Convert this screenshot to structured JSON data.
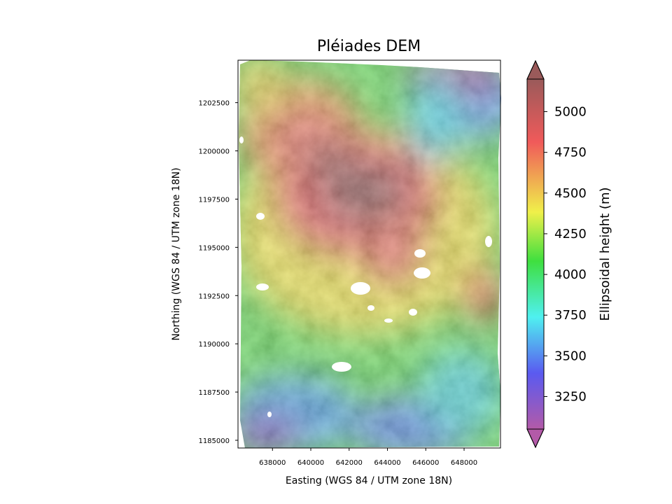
{
  "title": "Pléiades DEM",
  "map": {
    "xlabel": "Easting (WGS 84 / UTM zone 18N)",
    "ylabel": "Northing (WGS 84 / UTM zone 18N)",
    "xlim": [
      636200,
      649900
    ],
    "ylim": [
      1184600,
      1204700
    ],
    "xticks": [
      638000,
      640000,
      642000,
      644000,
      646000,
      648000
    ],
    "yticks": [
      1185000,
      1187500,
      1190000,
      1192500,
      1195000,
      1197500,
      1200000,
      1202500
    ],
    "xtick_labels": [
      "638000",
      "640000",
      "642000",
      "644000",
      "646000",
      "648000"
    ],
    "ytick_labels": [
      "1185000",
      "1187500",
      "1190000",
      "1192500",
      "1195000",
      "1197500",
      "1200000",
      "1202500"
    ]
  },
  "colorbar": {
    "label": "Ellipsoidal height (m)",
    "range": [
      3050,
      5200
    ],
    "extend": "both",
    "ticks": [
      3250,
      3500,
      3750,
      4000,
      4250,
      4500,
      4750,
      5000
    ],
    "tick_labels": [
      "3250",
      "3500",
      "3750",
      "4000",
      "4250",
      "4500",
      "4750",
      "5000"
    ],
    "colormap": "rainbow (magenta-blue-cyan-green-yellow-red-brown), semi-transparent over hillshade",
    "colors": [
      "#b35aa8",
      "#5a5af0",
      "#4ff0f0",
      "#3fdf3f",
      "#f0f04a",
      "#f05a5a",
      "#9a5a5a"
    ]
  },
  "chart_data": {
    "type": "heatmap",
    "title": "Pléiades DEM",
    "xlabel": "Easting (WGS 84 / UTM zone 18N)",
    "ylabel": "Northing (WGS 84 / UTM zone 18N)",
    "xlim": [
      636200,
      649900
    ],
    "ylim": [
      1184600,
      1204700
    ],
    "zlabel": "Ellipsoidal height (m)",
    "zlim": [
      3050,
      5200
    ],
    "grid": false,
    "legend": "colorbar right",
    "description_features": {
      "peak_region_center": [
        642800,
        1197900
      ],
      "peak_elevation": 5150,
      "low_region_southwest": [
        637500,
        1185500
      ],
      "low_region_northeast": [
        648500,
        1203800
      ],
      "low_region_south_center": [
        644500,
        1185500
      ]
    }
  }
}
